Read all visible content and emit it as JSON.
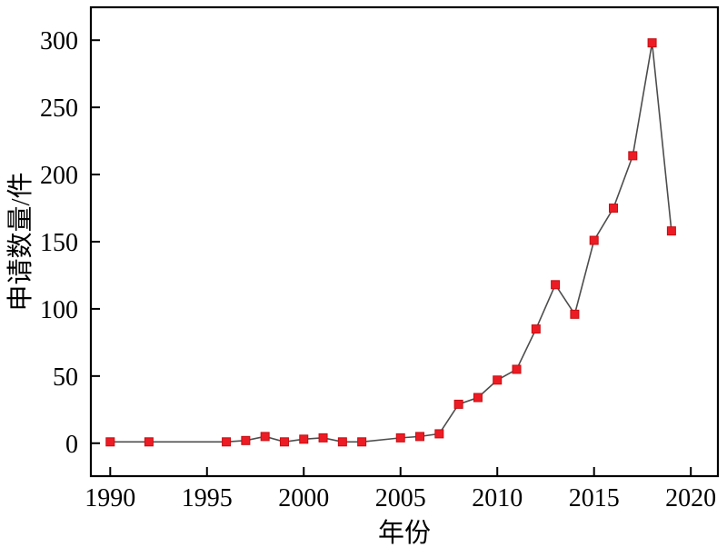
{
  "chart_data": {
    "type": "line",
    "xlabel": "年份",
    "ylabel": "申请数量/件",
    "x": [
      1990,
      1992,
      1996,
      1997,
      1998,
      1999,
      2000,
      2001,
      2002,
      2003,
      2005,
      2006,
      2007,
      2008,
      2009,
      2010,
      2011,
      2012,
      2013,
      2014,
      2015,
      2016,
      2017,
      2018,
      2019
    ],
    "values": [
      1,
      1,
      1,
      2,
      5,
      1,
      3,
      4,
      1,
      1,
      4,
      5,
      7,
      29,
      34,
      47,
      55,
      85,
      118,
      96,
      151,
      175,
      214,
      298,
      158
    ],
    "x_ticks": [
      1990,
      1995,
      2000,
      2005,
      2010,
      2015,
      2020
    ],
    "y_ticks": [
      0,
      50,
      100,
      150,
      200,
      250,
      300
    ],
    "xlim": [
      1989.0,
      2021.4
    ],
    "ylim": [
      -24.5,
      324.5
    ],
    "grid": false,
    "legend": null,
    "marker": "square",
    "marker_color": "#ed1c24",
    "marker_edge_color": "#c60d12",
    "line_color": "#4d4d4d",
    "axis_color": "#000000"
  }
}
